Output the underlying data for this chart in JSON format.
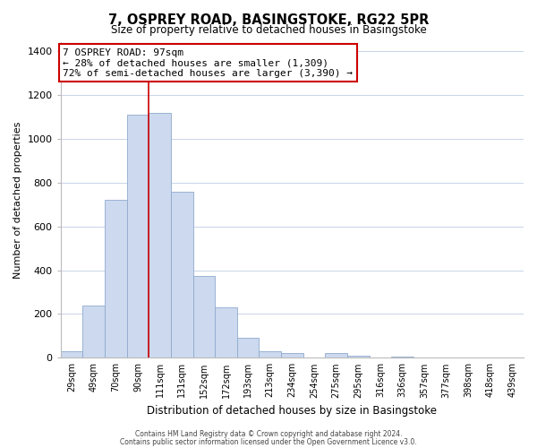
{
  "title": "7, OSPREY ROAD, BASINGSTOKE, RG22 5PR",
  "subtitle": "Size of property relative to detached houses in Basingstoke",
  "xlabel": "Distribution of detached houses by size in Basingstoke",
  "ylabel": "Number of detached properties",
  "bar_labels": [
    "29sqm",
    "49sqm",
    "70sqm",
    "90sqm",
    "111sqm",
    "131sqm",
    "152sqm",
    "172sqm",
    "193sqm",
    "213sqm",
    "234sqm",
    "254sqm",
    "275sqm",
    "295sqm",
    "316sqm",
    "336sqm",
    "357sqm",
    "377sqm",
    "398sqm",
    "418sqm",
    "439sqm"
  ],
  "bar_values": [
    30,
    240,
    720,
    1110,
    1120,
    760,
    375,
    230,
    90,
    30,
    20,
    0,
    20,
    10,
    0,
    5,
    0,
    0,
    0,
    0,
    0
  ],
  "bar_color": "#ccd9ee",
  "bar_edge_color": "#90aacf",
  "vline_color": "#cc0000",
  "ylim": [
    0,
    1440
  ],
  "yticks": [
    0,
    200,
    400,
    600,
    800,
    1000,
    1200,
    1400
  ],
  "annotation_title": "7 OSPREY ROAD: 97sqm",
  "annotation_line1": "← 28% of detached houses are smaller (1,309)",
  "annotation_line2": "72% of semi-detached houses are larger (3,390) →",
  "annotation_box_color": "#ffffff",
  "annotation_box_edge": "#cc0000",
  "footer1": "Contains HM Land Registry data © Crown copyright and database right 2024.",
  "footer2": "Contains public sector information licensed under the Open Government Licence v3.0.",
  "background_color": "#ffffff",
  "grid_color": "#c8d4e8"
}
